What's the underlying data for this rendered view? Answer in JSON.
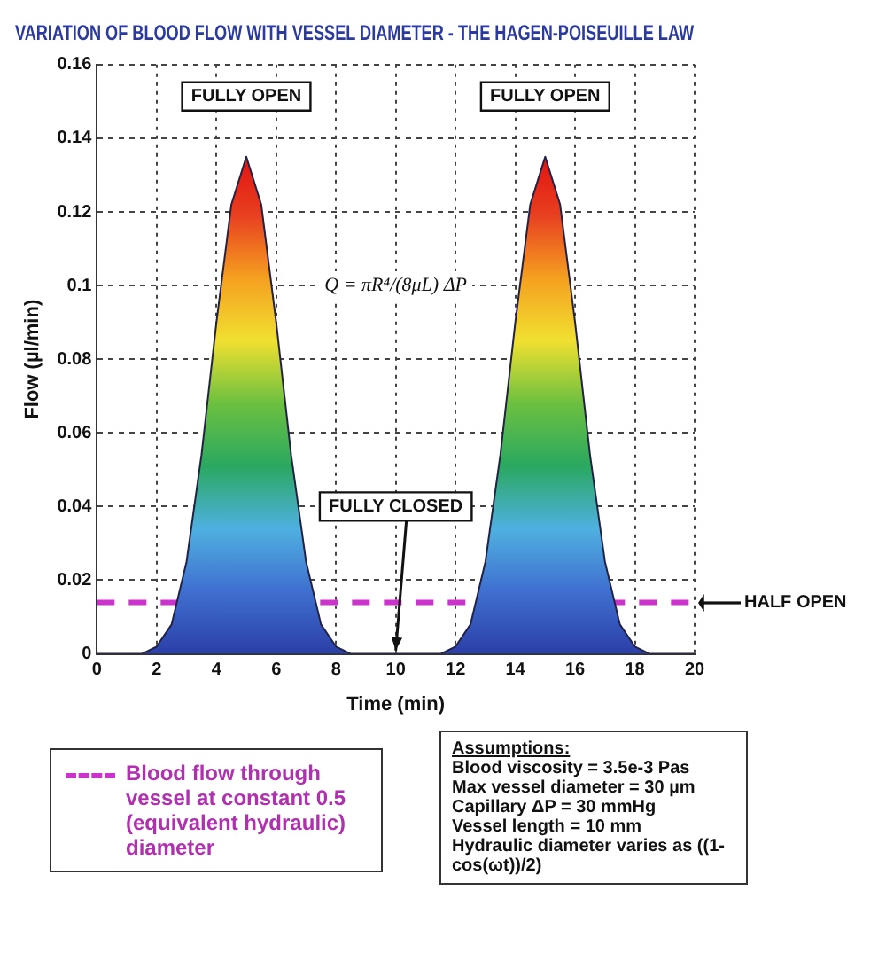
{
  "chart_data": {
    "type": "area",
    "title": "VARIATION OF BLOOD FLOW WITH VESSEL DIAMETER - THE HAGEN-POISEUILLE LAW",
    "xlabel": "Time (min)",
    "ylabel": "Flow (µl/min)",
    "x": [
      0,
      0.5,
      1,
      1.5,
      2,
      2.5,
      3,
      3.5,
      4,
      4.5,
      5,
      5.5,
      6,
      6.5,
      7,
      7.5,
      8,
      8.5,
      9,
      9.5,
      10,
      10.5,
      11,
      11.5,
      12,
      12.5,
      13,
      13.5,
      14,
      14.5,
      15,
      15.5,
      16,
      16.5,
      17,
      17.5,
      18,
      18.5,
      19,
      19.5,
      20
    ],
    "series": [
      {
        "color": "#2b3fa8",
        "values": [
          0,
          0,
          0,
          0,
          0.002,
          0.008,
          0.025,
          0.054,
          0.09,
          0.122,
          0.135,
          0.122,
          0.09,
          0.054,
          0.025,
          0.008,
          0.002,
          0,
          0,
          0,
          0,
          0,
          0,
          0,
          0.002,
          0.008,
          0.025,
          0.054,
          0.09,
          0.122,
          0.135,
          0.122,
          0.09,
          0.054,
          0.025,
          0.008,
          0.002,
          0,
          0,
          0,
          0
        ]
      },
      {
        "type": "line",
        "name": "Blood flow through vessel at constant 0.5 (equivalent hydraulic) diameter",
        "color": "#cc33cc",
        "line_style": "dashed",
        "x": [
          0,
          20
        ],
        "values": [
          0.014,
          0.014
        ]
      }
    ],
    "xlim": [
      0,
      20
    ],
    "xticks": [
      0,
      2,
      4,
      6,
      8,
      10,
      12,
      14,
      16,
      18,
      20
    ],
    "ylim": [
      0,
      0.16
    ],
    "yticks": [
      0,
      0.02,
      0.04,
      0.06,
      0.08,
      0.1,
      0.12,
      0.14,
      0.16
    ],
    "grid": true,
    "legend": "bottom left",
    "annotations": [
      "FULLY OPEN",
      "FULLY OPEN",
      {
        "text": "FULLY CLOSED",
        "x": 10,
        "y": 0
      },
      {
        "text": "HALF OPEN",
        "x": 20,
        "y": 0.014
      },
      "Q = πR⁴/(8μL) ΔP",
      "Assumptions:",
      "Blood viscosity = 3.5e-3 Pas",
      "Max vessel diameter = 30 µm",
      "Capillary ΔP = 30 mmHg",
      "Vessel length = 10 mm",
      "Hydraulic diameter varies as ((1-cos(ωt))/2)"
    ]
  }
}
